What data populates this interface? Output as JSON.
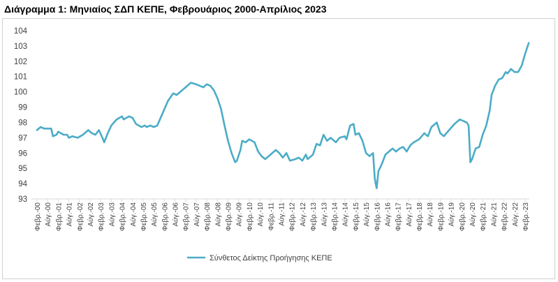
{
  "title": "Διάγραμμα 1: Μηνιαίος ΣΔΠ ΚΕΠΕ, Φεβρουάριος 2000-Απρίλιος 2023",
  "chart_data": {
    "type": "line",
    "title": "Διάγραμμα 1: Μηνιαίος ΣΔΠ ΚΕΠΕ, Φεβρουάριος 2000-Απρίλιος 2023",
    "xlabel": "",
    "ylabel": "",
    "ylim": [
      93,
      104
    ],
    "yticks": [
      "93",
      "94",
      "95",
      "96",
      "97",
      "98",
      "99",
      "100",
      "101",
      "102",
      "103",
      "104"
    ],
    "grid": false,
    "legend_position": "bottom",
    "x_tick_labels": [
      "Φεβρ.-00",
      "Αύγ.-00",
      "Φεβρ.-01",
      "Αύγ.-01",
      "Φεβρ.-02",
      "Αύγ.-02",
      "Φεβρ.-03",
      "Αύγ.-03",
      "Φεβρ.-04",
      "Αύγ.-04",
      "Φεβρ.-05",
      "Αύγ.-05",
      "Φεβρ.-06",
      "Αύγ.-06",
      "Φεβρ.-07",
      "Αύγ.-07",
      "Φεβρ.-08",
      "Αύγ.-08",
      "Φεβρ.-09",
      "Αύγ.-09",
      "Φεβρ.-10",
      "Αύγ.-10",
      "Φεβρ.-11",
      "Αύγ.-11",
      "Φεβρ.-12",
      "Αύγ.-12",
      "Φεβρ.-13",
      "Αύγ.-13",
      "Φεβρ.-14",
      "Αύγ.-14",
      "Φεβρ.-15",
      "Αύγ.-15",
      "Φεβρ.-16",
      "Αύγ.-16",
      "Φεβρ.-17",
      "Αύγ.-17",
      "Φεβρ.-18",
      "Αύγ.-18",
      "Φεβρ.-19",
      "Αύγ.-19",
      "Φεβρ.-20",
      "Αύγ.-20",
      "Φεβρ.-21",
      "Αύγ.-21",
      "Φεβρ.-22",
      "Αύγ.-22",
      "Φεβρ.-23"
    ],
    "series": [
      {
        "name": "Σύνθετος Δείκτης Προήγησης ΚΕΠΕ",
        "color": "#4bacc6",
        "points": [
          [
            "2000-02",
            97.5
          ],
          [
            "2000-04",
            97.7
          ],
          [
            "2000-06",
            97.6
          ],
          [
            "2000-08",
            97.6
          ],
          [
            "2000-10",
            97.6
          ],
          [
            "2000-11",
            97.1
          ],
          [
            "2001-01",
            97.2
          ],
          [
            "2001-02",
            97.4
          ],
          [
            "2001-05",
            97.2
          ],
          [
            "2001-07",
            97.2
          ],
          [
            "2001-08",
            97.0
          ],
          [
            "2001-10",
            97.1
          ],
          [
            "2002-01",
            97.0
          ],
          [
            "2002-04",
            97.2
          ],
          [
            "2002-07",
            97.5
          ],
          [
            "2002-09",
            97.3
          ],
          [
            "2002-11",
            97.2
          ],
          [
            "2003-01",
            97.5
          ],
          [
            "2003-03",
            97.0
          ],
          [
            "2003-04",
            96.7
          ],
          [
            "2003-06",
            97.3
          ],
          [
            "2003-08",
            97.8
          ],
          [
            "2003-11",
            98.2
          ],
          [
            "2004-02",
            98.4
          ],
          [
            "2004-03",
            98.2
          ],
          [
            "2004-06",
            98.4
          ],
          [
            "2004-08",
            98.3
          ],
          [
            "2004-10",
            97.9
          ],
          [
            "2005-01",
            97.7
          ],
          [
            "2005-03",
            97.8
          ],
          [
            "2005-04",
            97.7
          ],
          [
            "2005-06",
            97.8
          ],
          [
            "2005-08",
            97.7
          ],
          [
            "2005-10",
            97.8
          ],
          [
            "2006-01",
            98.6
          ],
          [
            "2006-04",
            99.4
          ],
          [
            "2006-07",
            99.9
          ],
          [
            "2006-09",
            99.8
          ],
          [
            "2006-11",
            100.0
          ],
          [
            "2007-01",
            100.2
          ],
          [
            "2007-03",
            100.4
          ],
          [
            "2007-05",
            100.6
          ],
          [
            "2007-08",
            100.5
          ],
          [
            "2007-10",
            100.4
          ],
          [
            "2007-12",
            100.3
          ],
          [
            "2008-02",
            100.5
          ],
          [
            "2008-04",
            100.4
          ],
          [
            "2008-06",
            100.1
          ],
          [
            "2008-08",
            99.6
          ],
          [
            "2008-10",
            98.9
          ],
          [
            "2008-12",
            97.8
          ],
          [
            "2009-02",
            96.8
          ],
          [
            "2009-04",
            96.0
          ],
          [
            "2009-06",
            95.4
          ],
          [
            "2009-07",
            95.5
          ],
          [
            "2009-09",
            96.2
          ],
          [
            "2009-10",
            96.8
          ],
          [
            "2009-12",
            96.7
          ],
          [
            "2010-02",
            96.9
          ],
          [
            "2010-05",
            96.7
          ],
          [
            "2010-07",
            96.1
          ],
          [
            "2010-09",
            95.8
          ],
          [
            "2010-11",
            95.6
          ],
          [
            "2011-01",
            95.8
          ],
          [
            "2011-02",
            95.9
          ],
          [
            "2011-05",
            96.2
          ],
          [
            "2011-07",
            96.0
          ],
          [
            "2011-09",
            95.7
          ],
          [
            "2011-11",
            96.0
          ],
          [
            "2012-01",
            95.5
          ],
          [
            "2012-04",
            95.6
          ],
          [
            "2012-06",
            95.7
          ],
          [
            "2012-08",
            95.5
          ],
          [
            "2012-10",
            95.9
          ],
          [
            "2012-11",
            95.6
          ],
          [
            "2013-02",
            95.9
          ],
          [
            "2013-04",
            96.6
          ],
          [
            "2013-06",
            96.5
          ],
          [
            "2013-08",
            97.2
          ],
          [
            "2013-10",
            96.8
          ],
          [
            "2013-12",
            97.0
          ],
          [
            "2014-03",
            96.7
          ],
          [
            "2014-05",
            97.0
          ],
          [
            "2014-08",
            97.1
          ],
          [
            "2014-09",
            96.9
          ],
          [
            "2014-11",
            97.8
          ],
          [
            "2015-01",
            97.9
          ],
          [
            "2015-02",
            97.2
          ],
          [
            "2015-04",
            97.3
          ],
          [
            "2015-06",
            96.8
          ],
          [
            "2015-08",
            96.0
          ],
          [
            "2015-10",
            95.8
          ],
          [
            "2015-12",
            96.0
          ],
          [
            "2016-01",
            94.3
          ],
          [
            "2016-02",
            93.7
          ],
          [
            "2016-03",
            94.8
          ],
          [
            "2016-05",
            95.3
          ],
          [
            "2016-07",
            95.9
          ],
          [
            "2016-09",
            96.1
          ],
          [
            "2016-11",
            96.3
          ],
          [
            "2017-01",
            96.1
          ],
          [
            "2017-03",
            96.3
          ],
          [
            "2017-05",
            96.4
          ],
          [
            "2017-07",
            96.1
          ],
          [
            "2017-09",
            96.5
          ],
          [
            "2017-11",
            96.7
          ],
          [
            "2018-02",
            96.9
          ],
          [
            "2018-05",
            97.3
          ],
          [
            "2018-07",
            97.1
          ],
          [
            "2018-09",
            97.7
          ],
          [
            "2018-12",
            98.0
          ],
          [
            "2019-02",
            97.3
          ],
          [
            "2019-04",
            97.1
          ],
          [
            "2019-07",
            97.5
          ],
          [
            "2019-10",
            97.9
          ],
          [
            "2020-01",
            98.2
          ],
          [
            "2020-03",
            98.1
          ],
          [
            "2020-05",
            98.0
          ],
          [
            "2020-06",
            97.8
          ],
          [
            "2020-07",
            95.4
          ],
          [
            "2020-08",
            95.6
          ],
          [
            "2020-10",
            96.3
          ],
          [
            "2020-12",
            96.4
          ],
          [
            "2021-02",
            97.2
          ],
          [
            "2021-04",
            97.8
          ],
          [
            "2021-06",
            98.8
          ],
          [
            "2021-07",
            99.8
          ],
          [
            "2021-09",
            100.4
          ],
          [
            "2021-11",
            100.8
          ],
          [
            "2022-01",
            100.9
          ],
          [
            "2022-03",
            101.3
          ],
          [
            "2022-04",
            101.2
          ],
          [
            "2022-06",
            101.5
          ],
          [
            "2022-08",
            101.3
          ],
          [
            "2022-10",
            101.3
          ],
          [
            "2022-12",
            101.7
          ],
          [
            "2023-02",
            102.5
          ],
          [
            "2023-04",
            103.2
          ]
        ]
      }
    ]
  }
}
